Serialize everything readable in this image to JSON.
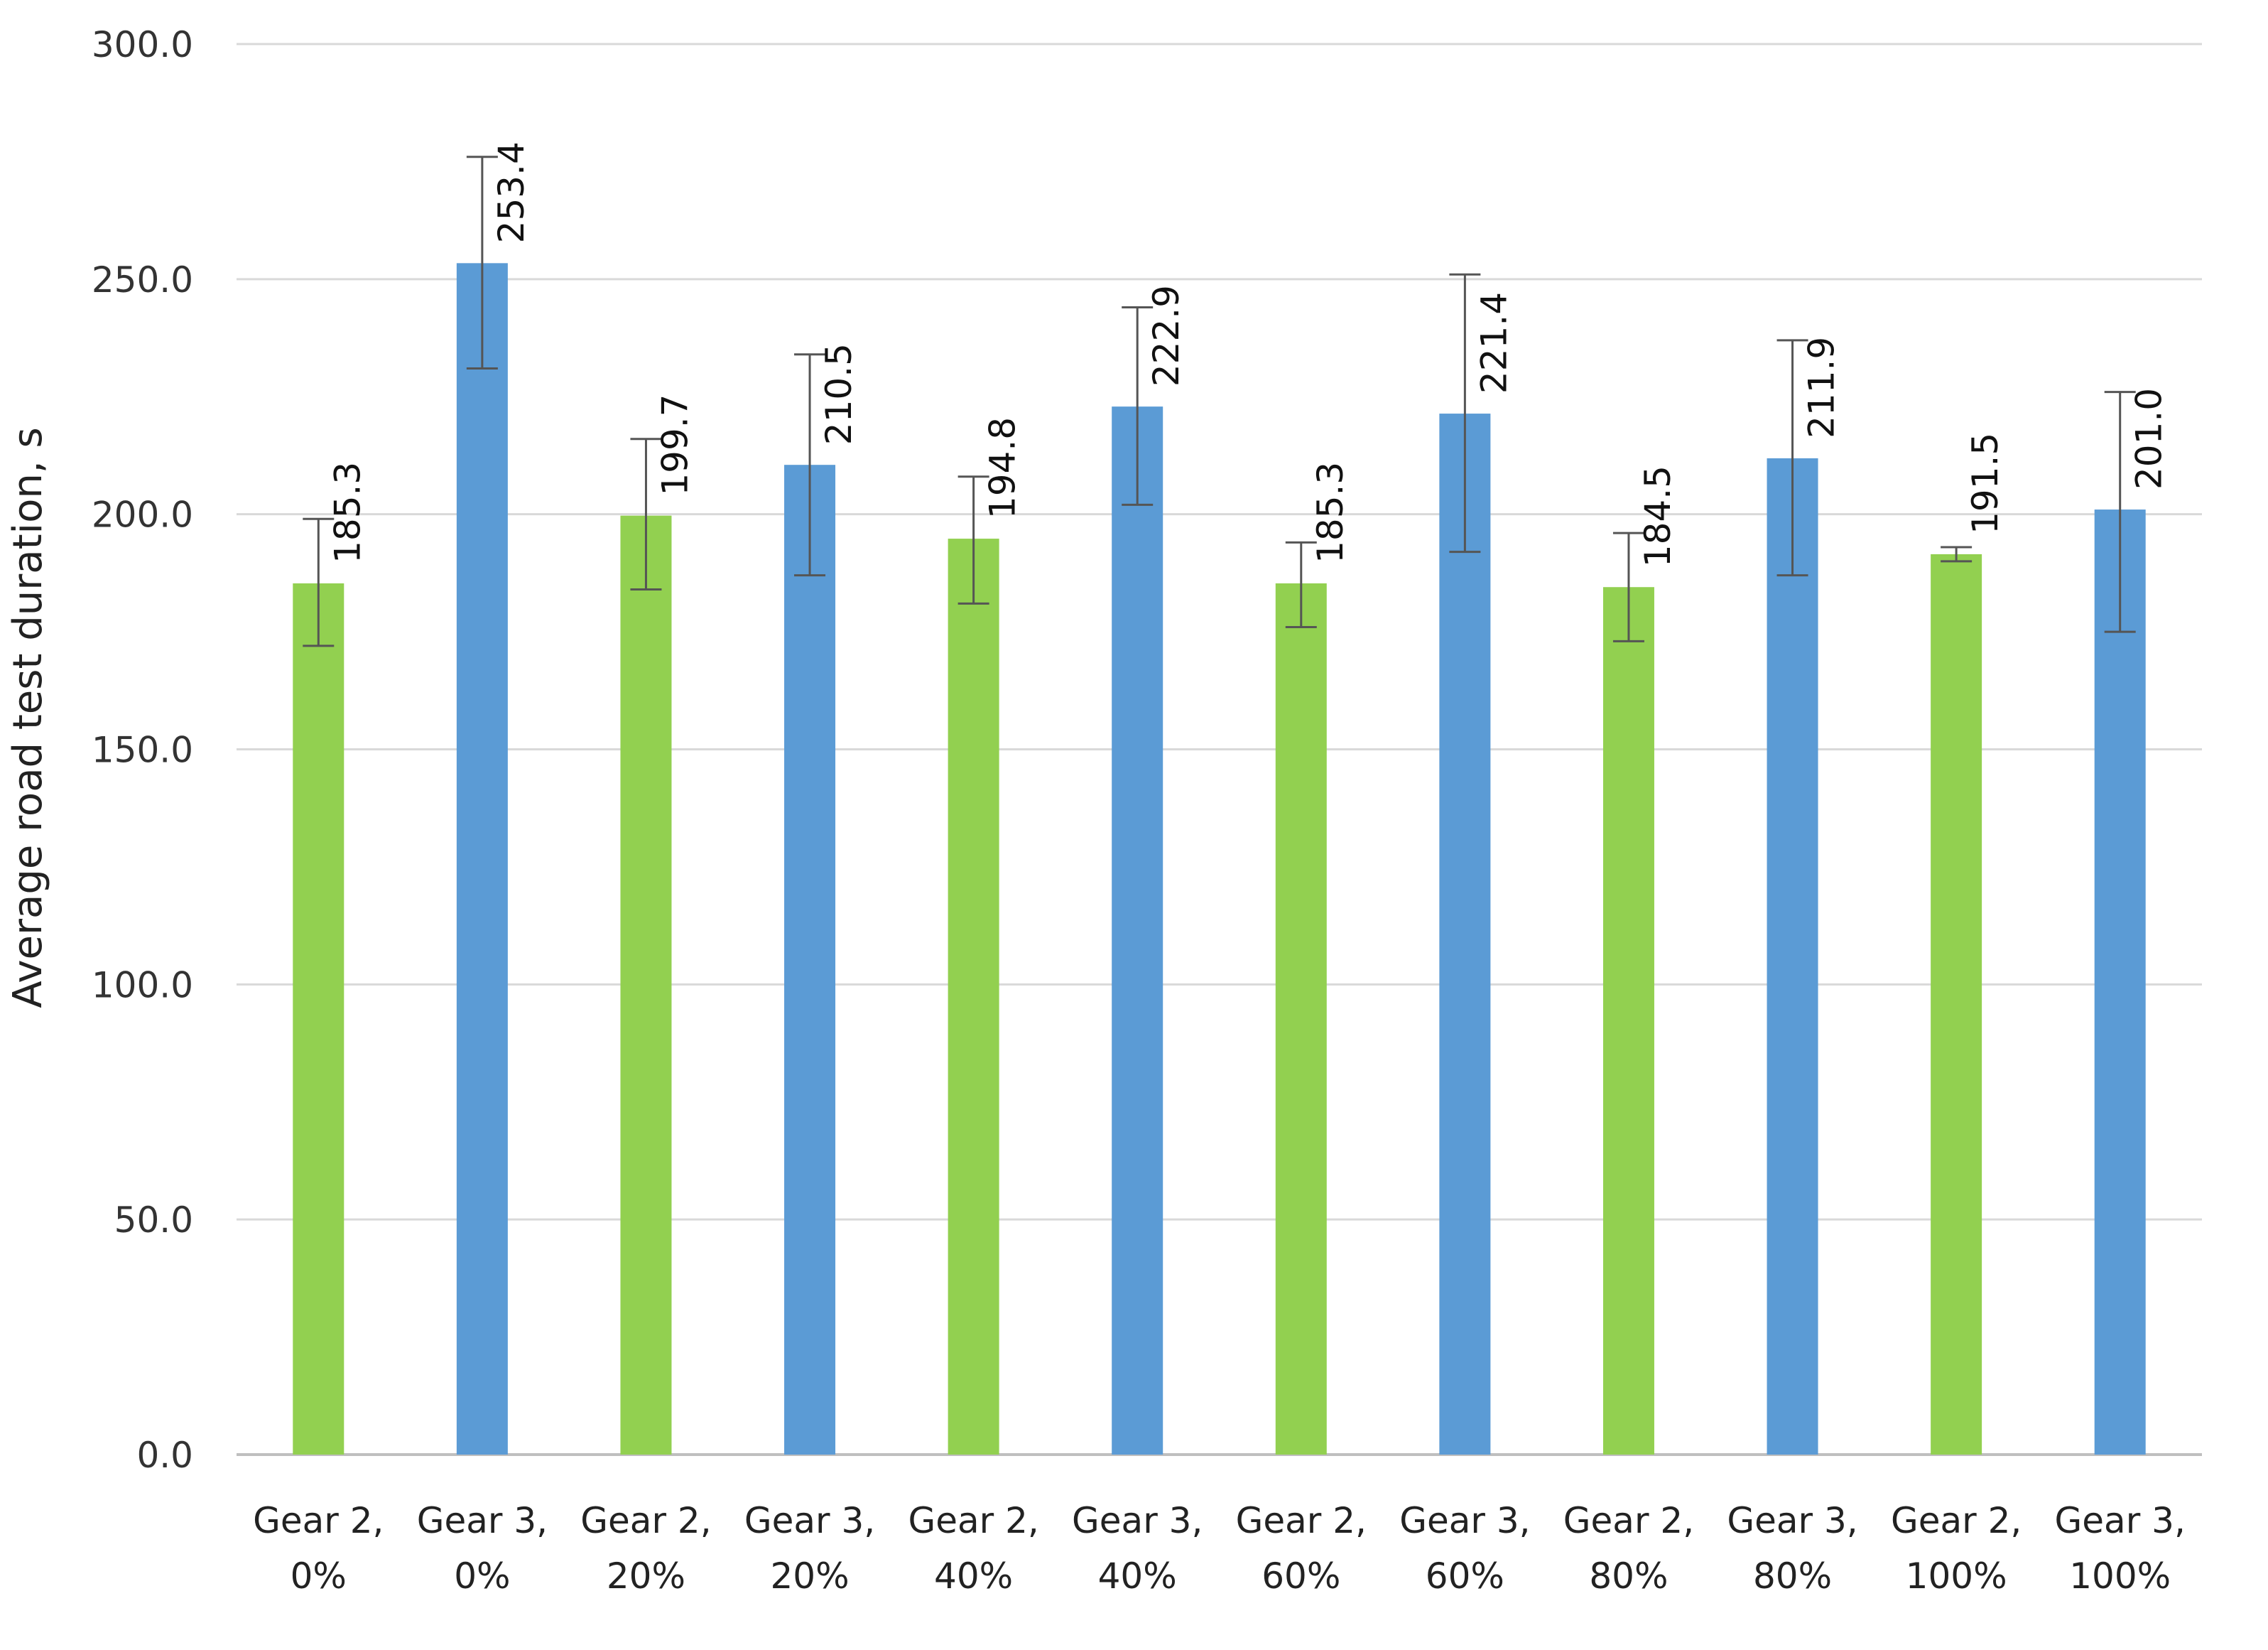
{
  "chart_data": {
    "type": "bar",
    "title": "",
    "xlabel": "",
    "ylabel": "Average road test  duration, s",
    "ylim": [
      0,
      300
    ],
    "yticks": [
      "0.0",
      "50.0",
      "100.0",
      "150.0",
      "200.0",
      "250.0",
      "300.0"
    ],
    "grid": true,
    "legend": "none",
    "categories": [
      [
        "Gear 2,",
        "0%"
      ],
      [
        "Gear 3,",
        "0%"
      ],
      [
        "Gear 2,",
        "20%"
      ],
      [
        "Gear 3,",
        "20%"
      ],
      [
        "Gear 2,",
        "40%"
      ],
      [
        "Gear 3,",
        "40%"
      ],
      [
        "Gear 2,",
        "60%"
      ],
      [
        "Gear 3,",
        "60%"
      ],
      [
        "Gear 2,",
        "80%"
      ],
      [
        "Gear 3,",
        "80%"
      ],
      [
        "Gear 2,",
        "100%"
      ],
      [
        "Gear 3,",
        "100%"
      ]
    ],
    "values": [
      185.3,
      253.4,
      199.7,
      210.5,
      194.8,
      222.9,
      185.3,
      221.4,
      184.5,
      211.9,
      191.5,
      201.0
    ],
    "value_labels": [
      "185.3",
      "253.4",
      "199.7",
      "210.5",
      "194.8",
      "222.9",
      "185.3",
      "221.4",
      "184.5",
      "211.9",
      "191.5",
      "201.0"
    ],
    "error_low": [
      172,
      231,
      184,
      187,
      181,
      202,
      176,
      192,
      173,
      187,
      190,
      175
    ],
    "error_high": [
      199,
      276,
      216,
      234,
      208,
      244,
      194,
      251,
      196,
      237,
      193,
      226
    ],
    "bar_colors": [
      "#92d050",
      "#5b9bd5",
      "#92d050",
      "#5b9bd5",
      "#92d050",
      "#5b9bd5",
      "#92d050",
      "#5b9bd5",
      "#92d050",
      "#5b9bd5",
      "#92d050",
      "#5b9bd5"
    ],
    "colors": {
      "grid": "#d9d9d9",
      "axis": "#bfbfbf",
      "error_bar": "#555555"
    }
  }
}
